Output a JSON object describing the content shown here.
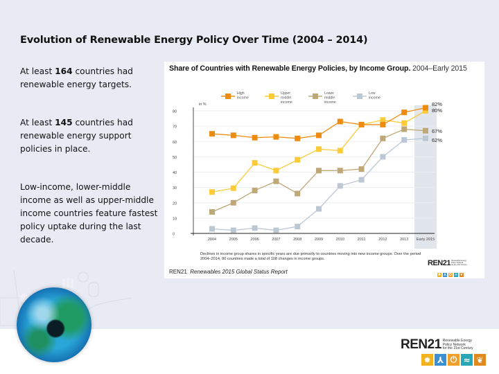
{
  "slide": {
    "title": "Evolution of Renewable Energy Policy Over Time (2004 – 2014)",
    "bullets": [
      {
        "pre": "At least ",
        "num": "164",
        "post": " countries had renewable energy targets."
      },
      {
        "pre": "At least ",
        "num": "145",
        "post": " countries had renewable energy support policies in place."
      },
      {
        "text": "Low-income, lower-middle income as well as upper-middle income countries feature fastest policy uptake during the last decade."
      }
    ]
  },
  "logo": {
    "name_prefix": "REN",
    "name_suffix": "21",
    "tagline": [
      "Renewable Energy",
      "Policy Network",
      "for the 21st Century"
    ],
    "icons": [
      {
        "name": "sun-icon",
        "glyph": "✹",
        "color": "#f2b21b"
      },
      {
        "name": "wind-turbine-icon",
        "glyph": "⅄",
        "color": "#3a8fd1"
      },
      {
        "name": "power-icon",
        "glyph": "⏻",
        "color": "#f0a02a"
      },
      {
        "name": "water-icon",
        "glyph": "≈",
        "color": "#28a7b8"
      },
      {
        "name": "biomass-icon",
        "glyph": "❦",
        "color": "#e08a1e"
      }
    ]
  },
  "chart_data": {
    "type": "line",
    "title": "Share of Countries with Renewable Energy Policies, by Income Group",
    "subtitle": "2004–Early 2015",
    "ylabel": "in %",
    "xlabel": "",
    "ylim": [
      0,
      80
    ],
    "yticks": [
      0,
      10,
      20,
      30,
      40,
      50,
      60,
      70,
      80
    ],
    "grid": true,
    "legend_position": "top",
    "categories": [
      "2004",
      "2005",
      "2006",
      "2007",
      "2008",
      "2009",
      "2010",
      "2011",
      "2012",
      "2013",
      "Early 2015"
    ],
    "highlight_category": "Early 2015",
    "series": [
      {
        "name": "High income",
        "color": "#ee8c10",
        "values": [
          65,
          64,
          62.5,
          63,
          62,
          64,
          73,
          71,
          71,
          79,
          82
        ],
        "end_label": "82%"
      },
      {
        "name": "Upper middle income",
        "color": "#fbcb3a",
        "values": [
          27,
          29.5,
          46,
          41,
          48,
          55,
          54,
          71,
          74,
          72,
          80
        ],
        "end_label": "80%"
      },
      {
        "name": "Lower middle income",
        "color": "#bfa877",
        "values": [
          14,
          20,
          28,
          34,
          26,
          41,
          41,
          42,
          62,
          68,
          67
        ],
        "end_label": "67%"
      },
      {
        "name": "Low income",
        "color": "#bcc7d4",
        "values": [
          3,
          2,
          3.5,
          2,
          4.5,
          16,
          31,
          35,
          50,
          61,
          62
        ],
        "end_label": "62%"
      }
    ],
    "legend_labels": [
      [
        "High",
        "income"
      ],
      [
        "Upper",
        "middle",
        "income"
      ],
      [
        "Lower",
        "middle",
        "income"
      ],
      [
        "Low",
        "income"
      ]
    ],
    "note": "Declines in income group shares in specific years are due primarily to countries moving into new income groups. Over the period 2004–2014, 80 countries made a total of 108 changes in income groups.",
    "source_org": "REN21",
    "source_title": "Renewables 2015 Global Status Report"
  }
}
